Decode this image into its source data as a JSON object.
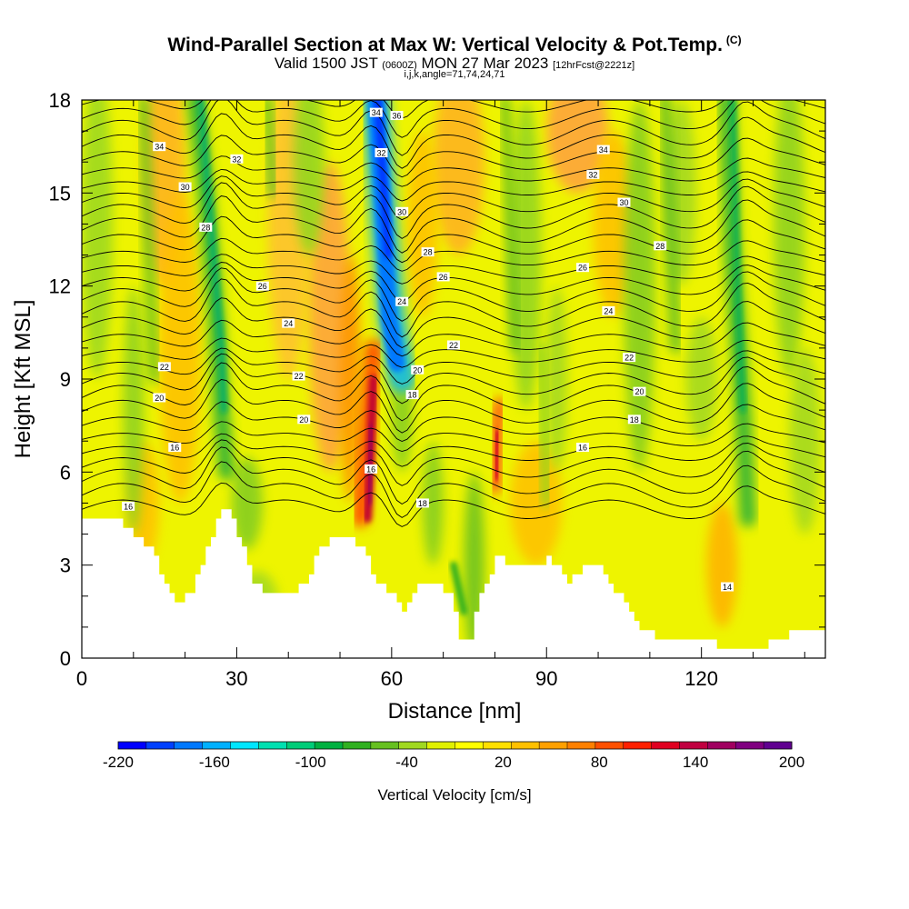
{
  "header": {
    "title": "Wind-Parallel Section at Max W: Vertical Velocity & Pot.Temp.",
    "title_mark": "(C)",
    "valid_prefix": "Valid 1500 JST",
    "valid_zulu": "(0600Z)",
    "valid_date": "MON 27 Mar 2023",
    "forecast": "[12hrFcst@2221z]",
    "grid_info": "i,j,k,angle=71,74,24,71"
  },
  "chart_data": {
    "type": "heatmap",
    "xlabel": "Distance [nm]",
    "ylabel": "Height [Kft MSL]",
    "xlim": [
      0,
      144
    ],
    "ylim": [
      0,
      18
    ],
    "x_ticks": [
      0,
      30,
      60,
      90,
      120
    ],
    "y_ticks": [
      0,
      3,
      6,
      9,
      12,
      15,
      18
    ],
    "colorbar": {
      "label": "Vertical Velocity [cm/s]",
      "tick_labels": [
        -220,
        -160,
        -100,
        -40,
        20,
        80,
        140,
        200
      ],
      "colors": [
        "#0000ff",
        "#0040ff",
        "#0078ff",
        "#00b0ff",
        "#00e6ff",
        "#00e0b0",
        "#00cc78",
        "#00b040",
        "#30b020",
        "#66c020",
        "#a0d820",
        "#e0f000",
        "#ffff00",
        "#ffe000",
        "#ffc000",
        "#ffa000",
        "#ff8000",
        "#ff5000",
        "#ff2000",
        "#e00020",
        "#c00040",
        "#a00060",
        "#800080",
        "#600090"
      ]
    },
    "terrain_top_kft": [
      [
        0,
        4.5
      ],
      [
        7,
        4.5
      ],
      [
        10,
        4.0
      ],
      [
        13,
        3.5
      ],
      [
        16,
        2.5
      ],
      [
        18,
        1.8
      ],
      [
        21,
        2.2
      ],
      [
        24,
        3.5
      ],
      [
        26,
        4.5
      ],
      [
        28,
        4.8
      ],
      [
        30,
        4.0
      ],
      [
        33,
        2.5
      ],
      [
        36,
        2.0
      ],
      [
        41,
        2.0
      ],
      [
        43,
        2.5
      ],
      [
        46,
        3.5
      ],
      [
        50,
        4.0
      ],
      [
        54,
        3.5
      ],
      [
        57,
        2.5
      ],
      [
        60,
        2.0
      ],
      [
        62,
        1.6
      ],
      [
        65,
        2.5
      ],
      [
        68,
        2.5
      ],
      [
        71,
        2.0
      ],
      [
        73,
        0.7
      ],
      [
        75,
        0.7
      ],
      [
        77,
        2.0
      ],
      [
        80,
        3.2
      ],
      [
        84,
        3.0
      ],
      [
        87,
        3.0
      ],
      [
        90,
        3.2
      ],
      [
        94,
        2.5
      ],
      [
        97,
        3.0
      ],
      [
        100,
        3.0
      ],
      [
        103,
        2.2
      ],
      [
        106,
        1.5
      ],
      [
        109,
        0.8
      ],
      [
        114,
        0.6
      ],
      [
        120,
        0.6
      ],
      [
        124,
        0.3
      ],
      [
        131,
        0.3
      ],
      [
        134,
        0.6
      ],
      [
        140,
        1.0
      ],
      [
        144,
        1.0
      ]
    ],
    "theta_contours_C": [
      14,
      16,
      18,
      20,
      22,
      24,
      26,
      28,
      30,
      32,
      34,
      36
    ],
    "theta_labels": [
      {
        "x": 15,
        "y": 16.5,
        "v": "34"
      },
      {
        "x": 30,
        "y": 16.1,
        "v": "32"
      },
      {
        "x": 20,
        "y": 15.2,
        "v": "30"
      },
      {
        "x": 24,
        "y": 13.9,
        "v": "28"
      },
      {
        "x": 35,
        "y": 12.0,
        "v": "26"
      },
      {
        "x": 40,
        "y": 10.8,
        "v": "24"
      },
      {
        "x": 16,
        "y": 9.4,
        "v": "22"
      },
      {
        "x": 15,
        "y": 8.4,
        "v": "20"
      },
      {
        "x": 42,
        "y": 9.1,
        "v": "22"
      },
      {
        "x": 43,
        "y": 7.7,
        "v": "20"
      },
      {
        "x": 18,
        "y": 6.8,
        "v": "16"
      },
      {
        "x": 9,
        "y": 4.9,
        "v": "16"
      },
      {
        "x": 56,
        "y": 6.1,
        "v": "16"
      },
      {
        "x": 57,
        "y": 17.6,
        "v": "34"
      },
      {
        "x": 61,
        "y": 17.5,
        "v": "36"
      },
      {
        "x": 58,
        "y": 16.3,
        "v": "32"
      },
      {
        "x": 62,
        "y": 14.4,
        "v": "30"
      },
      {
        "x": 67,
        "y": 13.1,
        "v": "28"
      },
      {
        "x": 70,
        "y": 12.3,
        "v": "26"
      },
      {
        "x": 62,
        "y": 11.5,
        "v": "24"
      },
      {
        "x": 72,
        "y": 10.1,
        "v": "22"
      },
      {
        "x": 65,
        "y": 9.3,
        "v": "20"
      },
      {
        "x": 64,
        "y": 8.5,
        "v": "18"
      },
      {
        "x": 66,
        "y": 5.0,
        "v": "18"
      },
      {
        "x": 101,
        "y": 16.4,
        "v": "34"
      },
      {
        "x": 99,
        "y": 15.6,
        "v": "32"
      },
      {
        "x": 105,
        "y": 14.7,
        "v": "30"
      },
      {
        "x": 112,
        "y": 13.3,
        "v": "28"
      },
      {
        "x": 97,
        "y": 12.6,
        "v": "26"
      },
      {
        "x": 102,
        "y": 11.2,
        "v": "24"
      },
      {
        "x": 106,
        "y": 9.7,
        "v": "22"
      },
      {
        "x": 108,
        "y": 8.6,
        "v": "20"
      },
      {
        "x": 107,
        "y": 7.7,
        "v": "18"
      },
      {
        "x": 97,
        "y": 6.8,
        "v": "16"
      },
      {
        "x": 125,
        "y": 2.3,
        "v": "14"
      }
    ],
    "velocity_features": [
      {
        "name": "downdraft",
        "x": 58,
        "y0": 9.0,
        "y1": 18.0,
        "w_cms": -220
      },
      {
        "name": "downdraft",
        "x": 27,
        "y0": 6.0,
        "y1": 18.0,
        "w_cms": -60
      },
      {
        "name": "downdraft",
        "x": 127,
        "y0": 4.0,
        "y1": 18.0,
        "w_cms": -60
      },
      {
        "name": "updraft",
        "x": 56,
        "y0": 4.0,
        "y1": 10.0,
        "w_cms": 200
      },
      {
        "name": "updraft",
        "x": 80,
        "y0": 5.0,
        "y1": 8.5,
        "w_cms": 170
      }
    ]
  }
}
